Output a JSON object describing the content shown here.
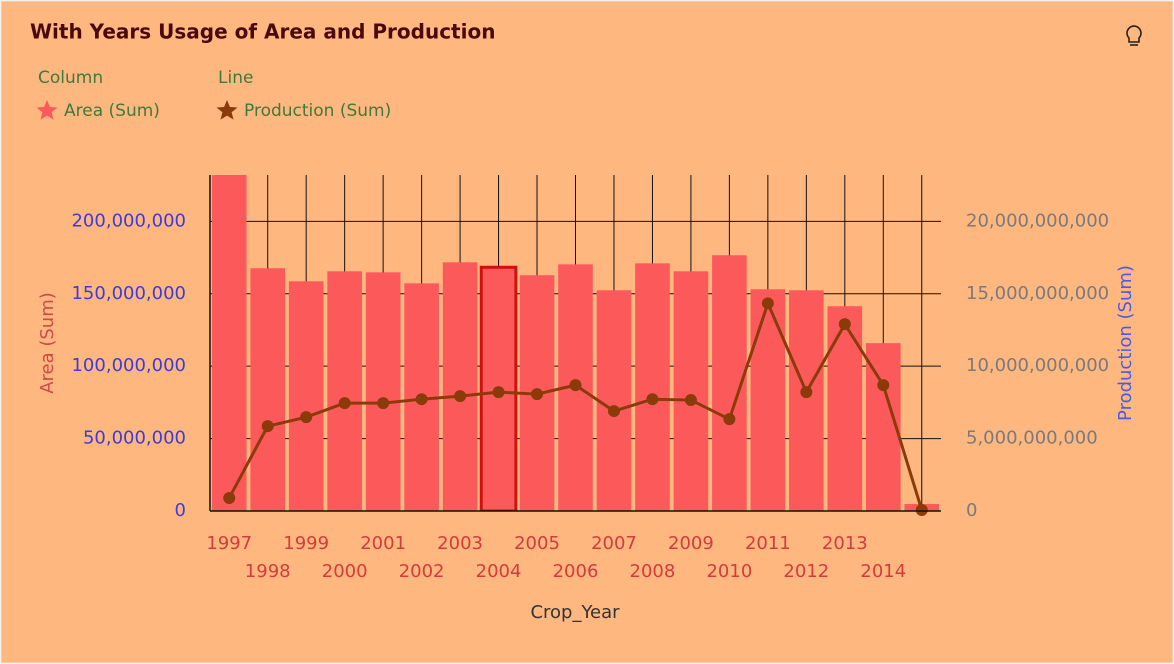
{
  "chart_data": {
    "type": "bar-line",
    "title": "With Years Usage of Area and Production",
    "legend_groups": [
      "Column",
      "Line"
    ],
    "x_label": "Crop_Year",
    "y_label": "Area (Sum)",
    "y2_label": "Production (Sum)",
    "categories": [
      "1997",
      "1998",
      "1999",
      "2000",
      "2001",
      "2002",
      "2003",
      "2004",
      "2005",
      "2006",
      "2007",
      "2008",
      "2009",
      "2010",
      "2011",
      "2012",
      "2013",
      "2014",
      null
    ],
    "series": [
      {
        "name": "Area (Sum)",
        "type": "bar",
        "color": "#fc5a5a",
        "values": [
          240000000,
          167600000,
          158600000,
          165500000,
          164800000,
          157200000,
          171700000,
          168300000,
          162800000,
          170300000,
          152400000,
          171000000,
          165500000,
          176600000,
          153100000,
          152400000,
          141400000,
          115900000,
          4800000
        ]
      },
      {
        "name": "Production (Sum)",
        "type": "line",
        "axis": "y2",
        "color": "#8b3a0a",
        "values": [
          900000000,
          5860000000,
          6480000000,
          7450000000,
          7450000000,
          7720000000,
          7930000000,
          8210000000,
          8070000000,
          8690000000,
          6900000000,
          7720000000,
          7660000000,
          6340000000,
          14340000000,
          8210000000,
          12900000000,
          8690000000,
          70000000
        ]
      }
    ],
    "selected_index": 7,
    "ylim": [
      0,
      232000000
    ],
    "yticks": [
      0,
      {
        "value": 50000000,
        "label": "50,000,000"
      },
      {
        "value": 100000000,
        "label": "100,000,000"
      },
      {
        "value": 150000000,
        "label": "150,000,000"
      },
      {
        "value": 200000000,
        "label": "200,000,000"
      }
    ],
    "y2lim": [
      0,
      23200000000
    ],
    "y2ticks": [
      0,
      {
        "value": 5000000000,
        "label": "5,000,000,000"
      },
      {
        "value": 10000000000,
        "label": "10,000,000,000"
      },
      {
        "value": 15000000000,
        "label": "15,000,000,000"
      },
      {
        "value": 20000000000,
        "label": "20,000,000,000"
      }
    ],
    "grid": true
  }
}
